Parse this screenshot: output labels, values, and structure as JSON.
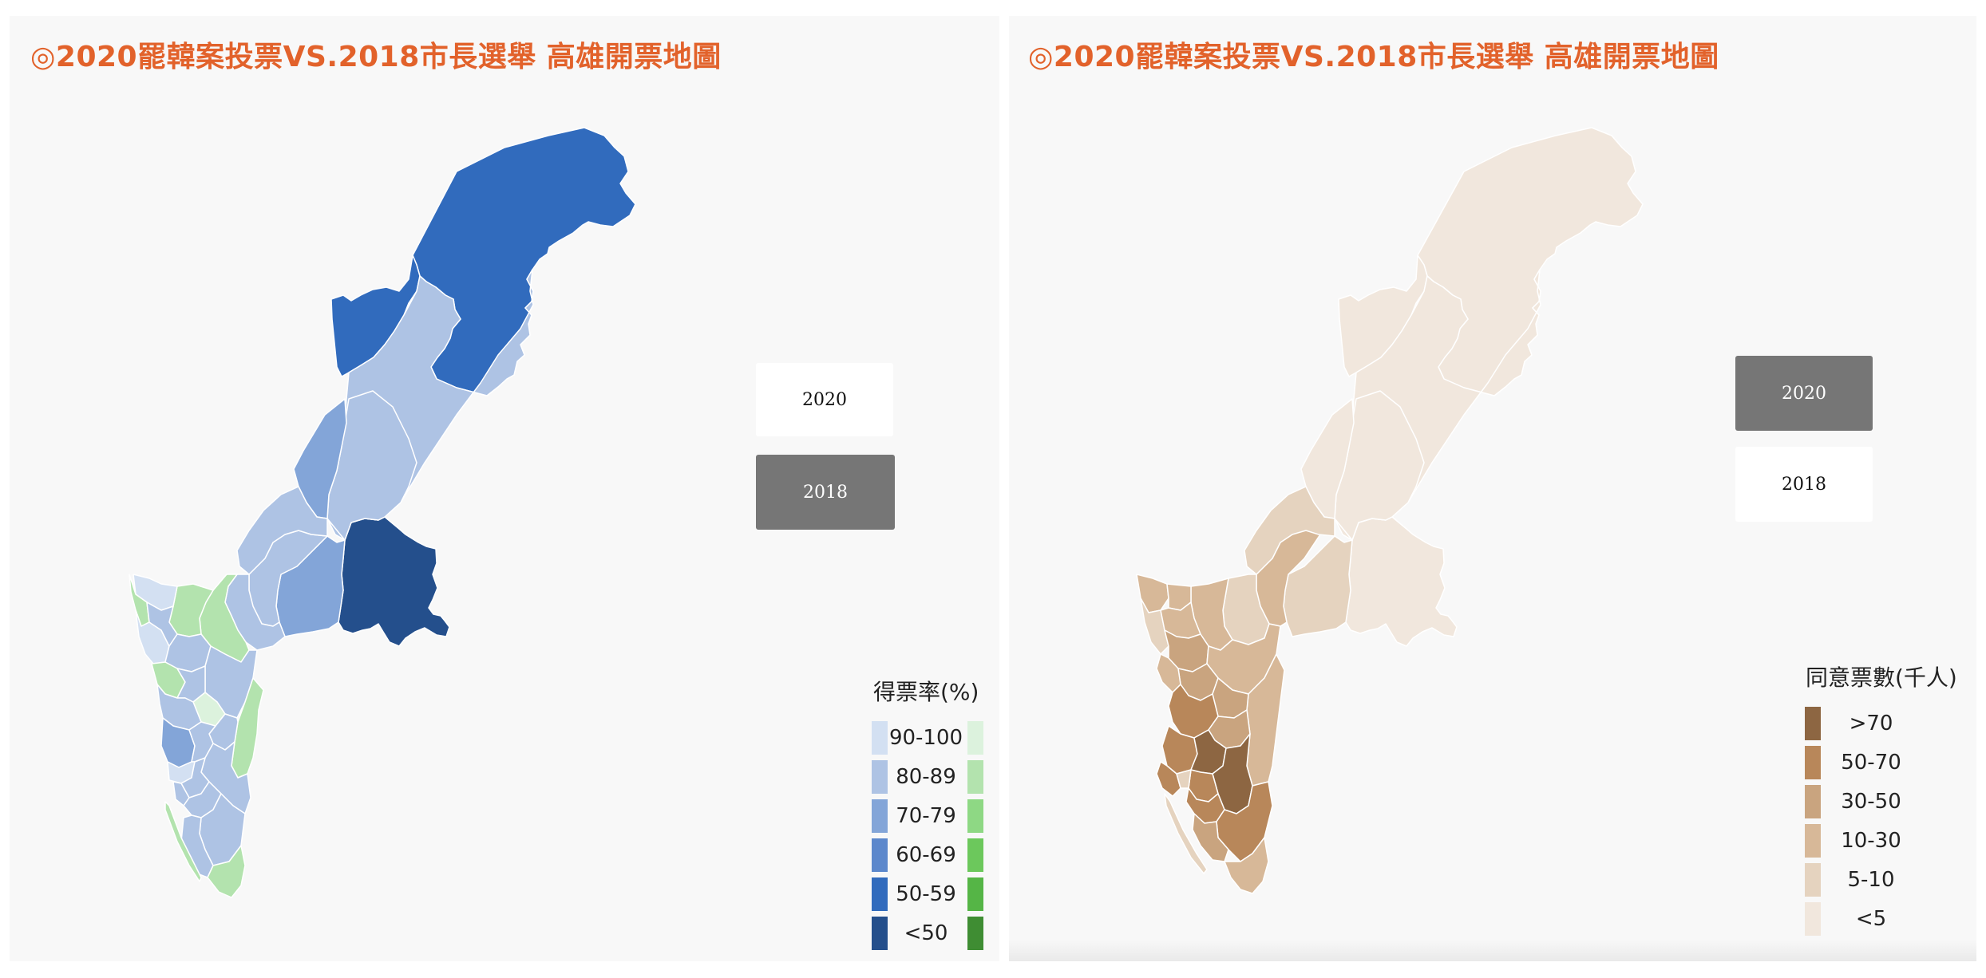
{
  "left": {
    "title": "◎2020罷韓案投票VS.2018市長選舉 高雄開票地圖",
    "buttons": [
      {
        "label": "2020",
        "active": false
      },
      {
        "label": "2018",
        "active": true
      }
    ],
    "legend": {
      "title": "得票率(%)",
      "items": [
        {
          "label": "90-100",
          "blue": "#d3e0f2",
          "green": "#dcf2dd"
        },
        {
          "label": "80-89",
          "blue": "#aec3e4",
          "green": "#b3e3ae"
        },
        {
          "label": "70-79",
          "blue": "#83a5d8",
          "green": "#8ed884"
        },
        {
          "label": "60-69",
          "blue": "#5c88cc",
          "green": "#6cc85c"
        },
        {
          "label": "50-59",
          "blue": "#316bbd",
          "green": "#55b546"
        },
        {
          "label": "<50",
          "blue": "#244f8c",
          "green": "#3f8d33"
        }
      ]
    }
  },
  "right": {
    "title": "◎2020罷韓案投票VS.2018市長選舉 高雄開票地圖",
    "buttons": [
      {
        "label": "2020",
        "active": true
      },
      {
        "label": "2018",
        "active": false
      }
    ],
    "legend": {
      "title": "同意票數(千人)",
      "items": [
        {
          "label": ">70",
          "color": "#8d6642"
        },
        {
          "label": "50-70",
          "color": "#b8875a"
        },
        {
          "label": "30-50",
          "color": "#c9a47f"
        },
        {
          "label": "10-30",
          "color": "#d7b898"
        },
        {
          "label": "5-10",
          "color": "#e5d3bf"
        },
        {
          "label": "<5",
          "color": "#f1e7dd"
        }
      ]
    }
  }
}
